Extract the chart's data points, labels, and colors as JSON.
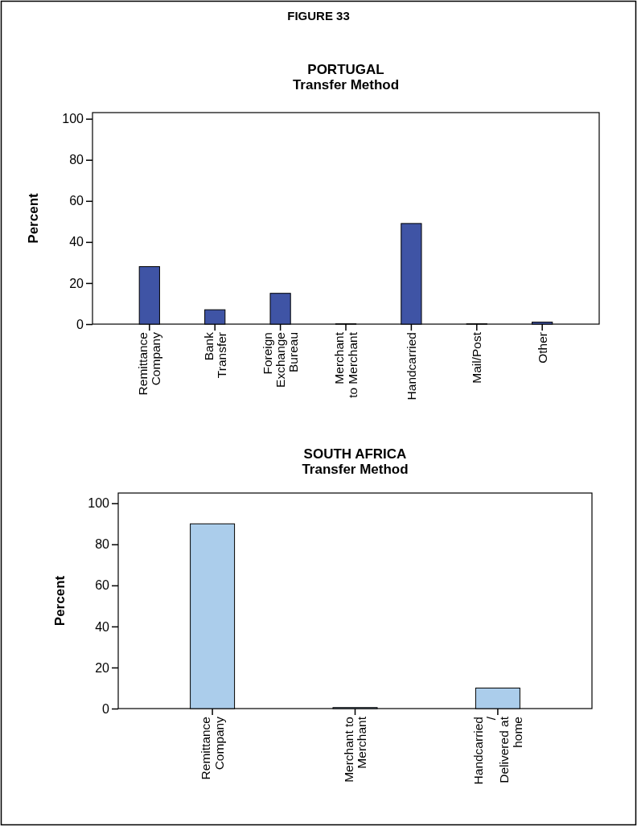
{
  "chart_data": [
    {
      "type": "bar",
      "title": "PORTUGAL\nTransfer Method",
      "annotations": [
        "FIGURE 33"
      ],
      "ylabel": "Percent",
      "categories": [
        "Remittance\nCompany",
        "Bank\nTransfer",
        "Foreign\nExchange\nBureau",
        "Merchant\nto Merchant",
        "Handcarried",
        "Mail/Post",
        "Other"
      ],
      "values": [
        28,
        7,
        15,
        0.2,
        49,
        0.2,
        1
      ],
      "color": "#3f54a5",
      "ylim": [
        0,
        103
      ],
      "yticks": [
        0,
        20,
        40,
        60,
        80,
        100
      ],
      "grid": false
    },
    {
      "type": "bar",
      "title": "SOUTH AFRICA\nTransfer Method",
      "ylabel": "Percent",
      "categories": [
        "Remittance\nCompany",
        "Merchant to\nMerchant",
        "Handcarried\n/\nDelivered at\nhome"
      ],
      "values": [
        90,
        0.5,
        10
      ],
      "color": "#abcdeb",
      "ylim": [
        0,
        105
      ],
      "yticks": [
        0,
        20,
        40,
        60,
        80,
        100
      ],
      "grid": false
    }
  ]
}
